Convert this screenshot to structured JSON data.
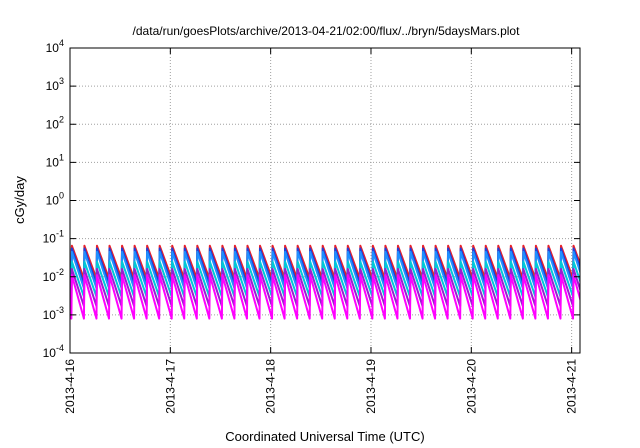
{
  "chart_data": {
    "type": "line",
    "title": "/data/run/goesPlots/archive/2013-04-21/02:00/flux/../bryn/5daysMars.plot",
    "xlabel": "Coordinated Universal Time (UTC)",
    "ylabel": "cGy/day",
    "yscale": "log",
    "ylim": [
      0.0001,
      10000
    ],
    "xlim": [
      "2013-04-16 00:00",
      "2013-04-21 02:00"
    ],
    "grid": true,
    "y_ticks": [
      {
        "base": "10",
        "exp": "-4"
      },
      {
        "base": "10",
        "exp": "-3"
      },
      {
        "base": "10",
        "exp": "-2"
      },
      {
        "base": "10",
        "exp": "-1"
      },
      {
        "base": "10",
        "exp": "0"
      },
      {
        "base": "10",
        "exp": "1"
      },
      {
        "base": "10",
        "exp": "2"
      },
      {
        "base": "10",
        "exp": "3"
      },
      {
        "base": "10",
        "exp": "4"
      }
    ],
    "x_ticks": [
      "2013-4-16",
      "2013-4-17",
      "2013-4-18",
      "2013-4-19",
      "2013-4-20",
      "2013-4-21"
    ],
    "pulse_period_hours": 3,
    "colors": {
      "red": "#e8202a",
      "blue": "#1f3fd8",
      "dodger": "#1e90ff",
      "cyan": "#00c8d8",
      "purple": "#9a1fd0",
      "magenta": "#ff00ff"
    },
    "series": [
      {
        "color": "red",
        "peak": 0.065,
        "trough": 0.009
      },
      {
        "color": "blue",
        "peak": 0.055,
        "trough": 0.0065
      },
      {
        "color": "dodger",
        "peak": 0.045,
        "trough": 0.005
      },
      {
        "color": "cyan",
        "peak": 0.025,
        "trough": 0.003
      },
      {
        "color": "purple",
        "peak": 0.016,
        "trough": 0.0017
      },
      {
        "color": "magenta",
        "peak": 0.011,
        "trough": 0.0008
      }
    ]
  }
}
